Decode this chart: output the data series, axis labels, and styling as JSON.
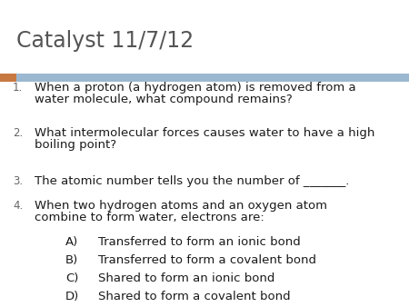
{
  "title": "Catalyst 11/7/12",
  "title_color": "#555555",
  "title_fontsize": 17,
  "background_color": "#ffffff",
  "header_bar_color": "#9cb8d1",
  "header_bar_left_color": "#c87941",
  "items": [
    {
      "num": "1.",
      "line1": "When a proton (a hydrogen atom) is removed from a",
      "line2": "water molecule, what compound remains?"
    },
    {
      "num": "2.",
      "line1": "What intermolecular forces causes water to have a high",
      "line2": "boiling point?"
    },
    {
      "num": "3.",
      "line1": "The atomic number tells you the number of _______.",
      "line2": null
    },
    {
      "num": "4.",
      "line1": "When two hydrogen atoms and an oxygen atom",
      "line2": "combine to form water, electrons are:"
    }
  ],
  "subitems": [
    {
      "label": "A)",
      "text": "Transferred to form an ionic bond"
    },
    {
      "label": "B)",
      "text": "Transferred to form a covalent bond"
    },
    {
      "label": "C)",
      "text": "Shared to form an ionic bond"
    },
    {
      "label": "D)",
      "text": "Shared to form a covalent bond"
    }
  ],
  "item_fontsize": 9.5,
  "num_fontsize": 8.5,
  "item_color": "#1a1a1a",
  "num_color": "#666666"
}
